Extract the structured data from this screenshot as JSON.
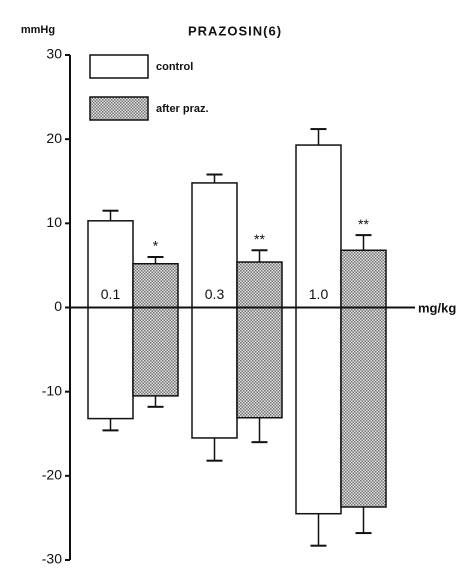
{
  "chart_data": {
    "type": "floating-bar",
    "title": "PRAZOSIN(6)",
    "y_label": "mmHg",
    "x_label": "mg/kg",
    "categories": [
      "0.1",
      "0.3",
      "1.0"
    ],
    "series": [
      {
        "name": "control",
        "color": "#ffffff",
        "pattern": "none",
        "high": [
          10.3,
          14.8,
          19.3
        ],
        "low": [
          -13.2,
          -15.5,
          -24.5
        ],
        "high_errors": [
          1.2,
          1.0,
          1.9
        ],
        "low_errors": [
          1.4,
          2.7,
          3.8
        ]
      },
      {
        "name": "after praz.",
        "color": "#777777",
        "pattern": "dotted",
        "high": [
          5.2,
          5.4,
          6.8
        ],
        "low": [
          -10.5,
          -13.1,
          -23.7
        ],
        "high_errors": [
          0.8,
          1.4,
          1.8
        ],
        "low_errors": [
          1.3,
          2.9,
          3.1
        ],
        "significance": [
          "*",
          "**",
          "**"
        ]
      }
    ],
    "ylim": [
      -30,
      30
    ],
    "yticks": [
      -30,
      -20,
      -10,
      0,
      10,
      20,
      30
    ],
    "grid": false
  }
}
